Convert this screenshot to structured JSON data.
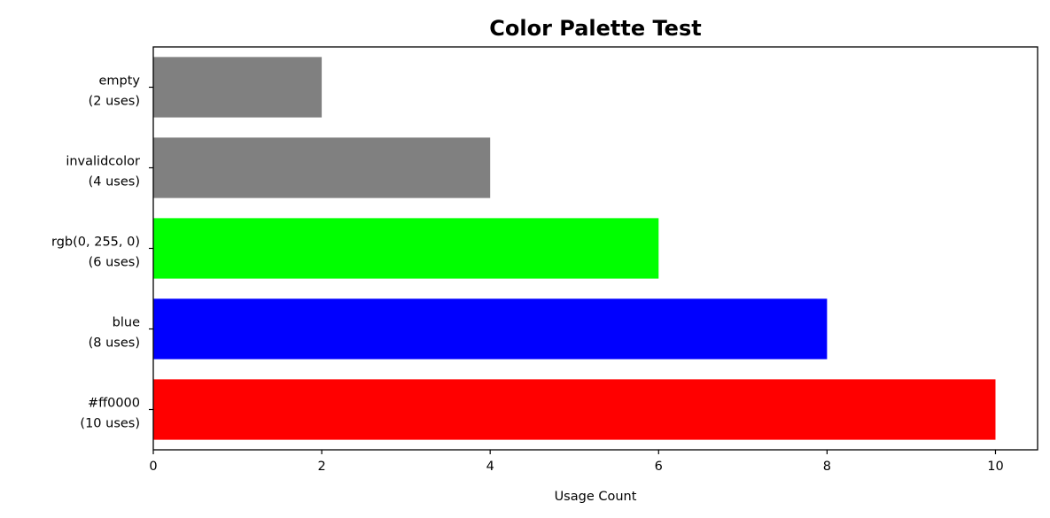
{
  "chart_data": {
    "type": "bar",
    "orientation": "horizontal",
    "title": "Color Palette Test",
    "xlabel": "Usage Count",
    "ylabel": "",
    "xlim": [
      0,
      10.5
    ],
    "xticks": [
      0,
      2,
      4,
      6,
      8,
      10
    ],
    "grid": false,
    "categories": [
      {
        "line1": "#ff0000",
        "line2": "(10 uses)"
      },
      {
        "line1": "blue",
        "line2": "(8 uses)"
      },
      {
        "line1": "rgb(0, 255, 0)",
        "line2": "(6 uses)"
      },
      {
        "line1": "invalidcolor",
        "line2": "(4 uses)"
      },
      {
        "line1": "empty",
        "line2": "(2 uses)"
      }
    ],
    "values": [
      10,
      8,
      6,
      4,
      2
    ],
    "colors": [
      "#ff0000",
      "#0000ff",
      "#00ff00",
      "#808080",
      "#808080"
    ]
  }
}
